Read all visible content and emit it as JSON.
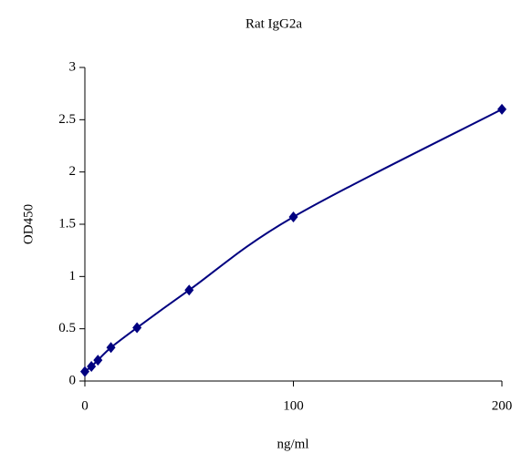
{
  "chart_data": {
    "type": "scatter",
    "title": "Rat IgG2a",
    "x_label": "ng/ml",
    "y_label": "OD450",
    "x": [
      0,
      3.125,
      6.25,
      12.5,
      25,
      50,
      100,
      200
    ],
    "series": [
      {
        "color": "#000080",
        "values": [
          0.09,
          0.14,
          0.2,
          0.32,
          0.51,
          0.87,
          1.57,
          2.6
        ]
      }
    ],
    "smooth_line": true,
    "xlim": [
      0,
      200
    ],
    "xticks": [
      0,
      100,
      200
    ],
    "ylim": [
      0,
      3
    ],
    "yticks": [
      0,
      0.5,
      1,
      1.5,
      2,
      2.5,
      3
    ],
    "grid": false
  }
}
